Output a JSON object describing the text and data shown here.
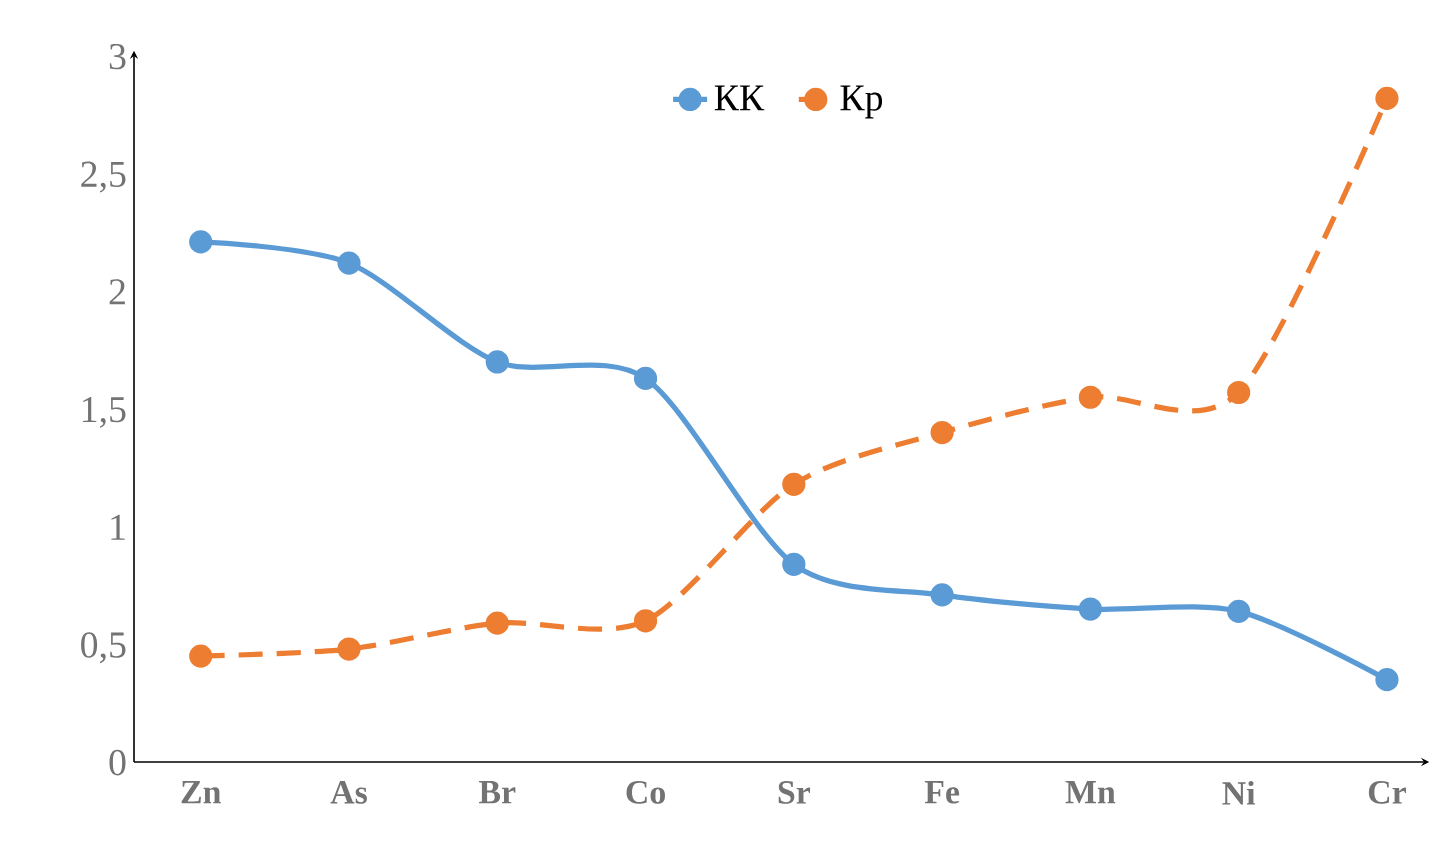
{
  "chart_data": {
    "type": "line",
    "categories": [
      "Zn",
      "As",
      "Br",
      "Co",
      "Sr",
      "Fe",
      "Mn",
      "Ni",
      "Cr"
    ],
    "series": [
      {
        "name": "КК",
        "color": "#5b9bd5",
        "line_style": "solid",
        "values": [
          2.21,
          2.12,
          1.7,
          1.63,
          0.84,
          0.71,
          0.65,
          0.64,
          0.35
        ]
      },
      {
        "name": "Кр",
        "color": "#ed7d31",
        "line_style": "dashed",
        "values": [
          0.45,
          0.48,
          0.59,
          0.6,
          1.18,
          1.4,
          1.55,
          1.57,
          2.82
        ]
      }
    ],
    "ylim": [
      0,
      3
    ],
    "yticks": [
      0,
      {
        "value": 0.5,
        "label": "0,5"
      },
      1,
      {
        "value": 1.5,
        "label": "1,5"
      },
      2,
      {
        "value": 2.5,
        "label": "2,5"
      },
      3
    ],
    "legend": "top",
    "marker": "circle",
    "grid": false
  }
}
